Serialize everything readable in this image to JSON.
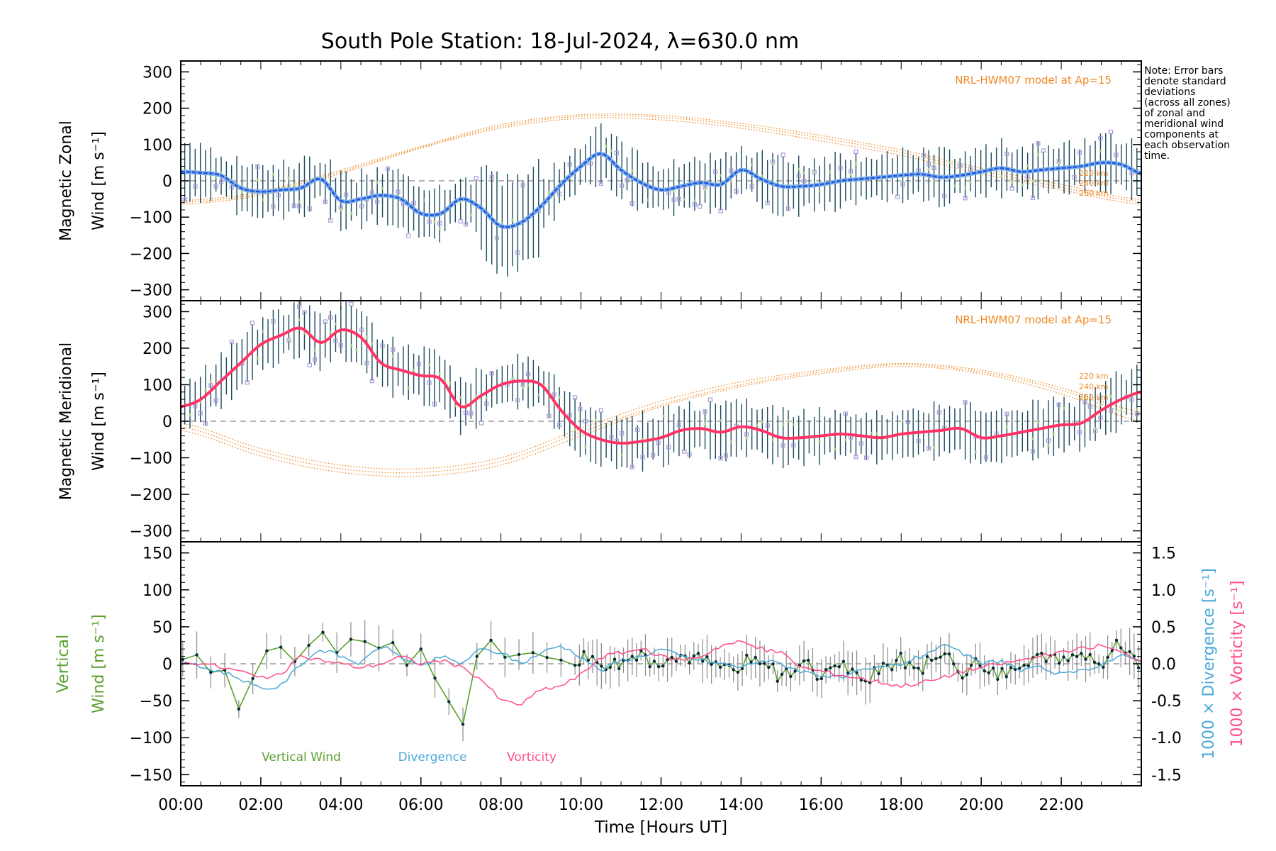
{
  "title": "South Pole Station: 18-Jul-2024, λ=630.0 nm",
  "note": [
    "Note: Error bars",
    "denote standard",
    "deviations",
    "(across all zones)",
    "of zonal and",
    "meridional wind",
    "components at",
    "each observation",
    "time."
  ],
  "colors": {
    "zonal": "#2255dd",
    "zonal_outline": "#7fb2e8",
    "meridional": "#ff3366",
    "model": "#f08a24",
    "vertical": "#5aa02c",
    "divergence": "#4aa8d8",
    "vorticity": "#ff4d88",
    "errbar": "#1a4a5a",
    "zone_marker": "#a99bdc",
    "vw_errbar": "#8a8a8a",
    "vw_point": "#0a2a3a"
  },
  "chart_data": [
    {
      "type": "line",
      "name": "magnetic-zonal-wind",
      "ylabel": [
        "Magnetic Zonal",
        "Wind [m s⁻¹]"
      ],
      "ylim": [
        -330,
        330
      ],
      "yticks": [
        300,
        200,
        100,
        0,
        -100,
        -200,
        -300
      ],
      "xlim": [
        0,
        24
      ],
      "model_label": "NRL-HWM07 model at Ap=15",
      "model_alt_labels": [
        "220 km",
        "240 km",
        "260 km"
      ],
      "series": [
        {
          "name": "Zonal Wind",
          "x": [
            0,
            0.5,
            1,
            1.5,
            2,
            2.5,
            3,
            3.5,
            4,
            4.5,
            5,
            5.5,
            6,
            6.5,
            7,
            7.5,
            8,
            8.5,
            9,
            9.5,
            10,
            10.5,
            11,
            11.5,
            12,
            12.5,
            13,
            13.5,
            14,
            14.5,
            15,
            15.5,
            16,
            16.5,
            17,
            17.5,
            18,
            18.5,
            19,
            19.5,
            20,
            20.5,
            21,
            21.5,
            22,
            22.5,
            23,
            23.5,
            24
          ],
          "y": [
            25,
            22,
            15,
            -20,
            -30,
            -25,
            -20,
            5,
            -55,
            -50,
            -40,
            -50,
            -90,
            -90,
            -50,
            -75,
            -125,
            -115,
            -70,
            -10,
            40,
            75,
            30,
            -5,
            -25,
            -15,
            -5,
            -10,
            30,
            5,
            -15,
            -15,
            -10,
            0,
            5,
            10,
            15,
            18,
            10,
            15,
            25,
            35,
            25,
            30,
            35,
            40,
            50,
            45,
            20
          ]
        }
      ],
      "model": [
        {
          "altitude": "220 km",
          "x": [
            0,
            2,
            4,
            6,
            8,
            10,
            12,
            14,
            16,
            18,
            20,
            22,
            24
          ],
          "y": [
            -65,
            -40,
            20,
            90,
            145,
            172,
            168,
            145,
            110,
            70,
            20,
            -25,
            -65
          ]
        },
        {
          "altitude": "240 km",
          "x": [
            0,
            2,
            4,
            6,
            8,
            10,
            12,
            14,
            16,
            18,
            20,
            22,
            24
          ],
          "y": [
            -60,
            -35,
            25,
            92,
            150,
            178,
            175,
            152,
            118,
            78,
            28,
            -18,
            -58
          ]
        },
        {
          "altitude": "260 km",
          "x": [
            0,
            2,
            4,
            6,
            8,
            10,
            12,
            14,
            16,
            18,
            20,
            22,
            24
          ],
          "y": [
            -55,
            -30,
            30,
            95,
            155,
            182,
            180,
            158,
            125,
            85,
            35,
            -10,
            -52
          ]
        }
      ]
    },
    {
      "type": "line",
      "name": "magnetic-meridional-wind",
      "ylabel": [
        "Magnetic Meridional",
        "Wind [m s⁻¹]"
      ],
      "ylim": [
        -330,
        330
      ],
      "yticks": [
        300,
        200,
        100,
        0,
        -100,
        -200,
        -300
      ],
      "xlim": [
        0,
        24
      ],
      "model_label": "NRL-HWM07 model at Ap=15",
      "model_alt_labels": [
        "220 km",
        "240 km",
        "260 km"
      ],
      "series": [
        {
          "name": "Meridional Wind",
          "x": [
            0,
            0.5,
            1,
            1.5,
            2,
            2.5,
            3,
            3.5,
            4,
            4.5,
            5,
            5.5,
            6,
            6.5,
            7,
            7.5,
            8,
            8.5,
            9,
            9.5,
            10,
            10.5,
            11,
            11.5,
            12,
            12.5,
            13,
            13.5,
            14,
            14.5,
            15,
            15.5,
            16,
            16.5,
            17,
            17.5,
            18,
            18.5,
            19,
            19.5,
            20,
            20.5,
            21,
            21.5,
            22,
            22.5,
            23,
            23.5,
            24
          ],
          "y": [
            40,
            60,
            110,
            160,
            210,
            235,
            255,
            215,
            250,
            230,
            160,
            140,
            125,
            115,
            40,
            70,
            100,
            110,
            100,
            30,
            -25,
            -50,
            -60,
            -55,
            -45,
            -25,
            -20,
            -30,
            -15,
            -25,
            -45,
            -45,
            -40,
            -35,
            -40,
            -45,
            -35,
            -30,
            -25,
            -20,
            -45,
            -40,
            -30,
            -20,
            -10,
            -5,
            30,
            60,
            80
          ]
        }
      ],
      "model": [
        {
          "altitude": "220 km",
          "x": [
            0,
            2,
            4,
            6,
            8,
            10,
            12,
            14,
            16,
            18,
            20,
            22,
            24
          ],
          "y": [
            -25,
            -95,
            -140,
            -150,
            -120,
            -40,
            40,
            95,
            130,
            150,
            130,
            75,
            0
          ]
        },
        {
          "altitude": "240 km",
          "x": [
            0,
            2,
            4,
            6,
            8,
            10,
            12,
            14,
            16,
            18,
            20,
            22,
            24
          ],
          "y": [
            -15,
            -85,
            -130,
            -140,
            -110,
            -30,
            45,
            100,
            135,
            155,
            135,
            85,
            15
          ]
        },
        {
          "altitude": "260 km",
          "x": [
            0,
            2,
            4,
            6,
            8,
            10,
            12,
            14,
            16,
            18,
            20,
            22,
            24
          ],
          "y": [
            -5,
            -75,
            -120,
            -130,
            -100,
            -20,
            55,
            108,
            140,
            158,
            140,
            92,
            25
          ]
        }
      ]
    },
    {
      "type": "line",
      "name": "vertical-divergence-vorticity",
      "ylabel": [
        "Vertical",
        "Wind [m s⁻¹]"
      ],
      "ylim": [
        -165,
        165
      ],
      "yticks": [
        150,
        100,
        50,
        0,
        -50,
        -100,
        -150
      ],
      "right_ylim": [
        -1.65,
        1.65
      ],
      "right_yticks": [
        1.5,
        1.0,
        0.5,
        0.0,
        -0.5,
        -1.0,
        -1.5
      ],
      "right_ylabels": [
        "1000 × Divergence [s⁻¹]",
        "1000 × Vorticity [s⁻¹]"
      ],
      "xlim": [
        0,
        24
      ],
      "xticks": [
        "00:00",
        "02:00",
        "04:00",
        "06:00",
        "08:00",
        "10:00",
        "12:00",
        "14:00",
        "16:00",
        "18:00",
        "20:00",
        "22:00"
      ],
      "xlabel": "Time [Hours UT]",
      "legend": [
        "Vertical Wind",
        "Divergence",
        "Vorticity"
      ],
      "series": [
        {
          "name": "Vertical Wind",
          "axis": "left",
          "x": [
            0,
            0.4,
            0.8,
            1.0,
            1.4,
            1.6,
            2.0,
            2.4,
            2.8,
            3.2,
            3.6,
            4.0,
            4.4,
            4.8,
            5.2,
            5.6,
            6.0,
            6.4,
            6.8,
            7.0,
            7.4,
            7.8,
            8.2,
            8.6,
            9.0,
            9.5,
            10.0,
            10.5,
            11.0,
            11.5,
            12.0,
            12.5,
            13.0,
            13.5,
            14.0,
            14.5,
            15.0,
            15.5,
            16.0,
            16.5,
            17.0,
            17.5,
            18.0,
            18.5,
            19.0,
            19.5,
            20.0,
            20.5,
            21.0,
            21.5,
            22.0,
            22.5,
            23.0,
            23.5,
            24.0
          ],
          "y": [
            5,
            12,
            -15,
            10,
            -65,
            -50,
            10,
            30,
            0,
            25,
            45,
            5,
            50,
            10,
            40,
            -5,
            20,
            -25,
            -60,
            -95,
            10,
            35,
            0,
            20,
            10,
            5,
            8,
            0,
            -5,
            10,
            -10,
            15,
            5,
            -10,
            0,
            10,
            -20,
            5,
            -15,
            0,
            -25,
            -10,
            5,
            -5,
            15,
            -10,
            0,
            -15,
            -5,
            10,
            0,
            15,
            0,
            30,
            -5
          ]
        },
        {
          "name": "Divergence",
          "axis": "right",
          "x": [
            0,
            0.5,
            1.0,
            1.5,
            2.0,
            2.5,
            3.0,
            3.5,
            4.0,
            4.5,
            5.0,
            5.5,
            6.0,
            6.5,
            7.0,
            7.5,
            8.0,
            8.5,
            9.0,
            9.5,
            10.0,
            10.5,
            11.0,
            11.5,
            12.0,
            12.5,
            13.0,
            13.5,
            14.0,
            14.5,
            15.0,
            15.5,
            16.0,
            16.5,
            17.0,
            17.5,
            18.0,
            18.5,
            19.0,
            19.5,
            20.0,
            20.5,
            21.0,
            21.5,
            22.0,
            22.5,
            23.0,
            23.5,
            24.0
          ],
          "y": [
            0.05,
            -0.05,
            -0.1,
            -0.2,
            -0.35,
            -0.3,
            0.0,
            0.2,
            0.1,
            0.0,
            0.25,
            0.1,
            -0.05,
            0.1,
            0.0,
            0.2,
            0.15,
            0.0,
            0.15,
            0.25,
            0.1,
            -0.1,
            0.05,
            0.1,
            0.2,
            0.1,
            0.05,
            0.0,
            -0.05,
            0.05,
            0.0,
            -0.1,
            -0.15,
            -0.2,
            -0.1,
            -0.05,
            0.0,
            0.1,
            0.25,
            0.15,
            0.0,
            0.05,
            -0.1,
            -0.05,
            -0.15,
            -0.1,
            0.0,
            0.1,
            0.05
          ]
        },
        {
          "name": "Vorticity",
          "axis": "right",
          "x": [
            0,
            0.5,
            1.0,
            1.5,
            2.0,
            2.5,
            3.0,
            3.5,
            4.0,
            4.5,
            5.0,
            5.5,
            6.0,
            6.5,
            7.0,
            7.5,
            8.0,
            8.5,
            9.0,
            9.5,
            10.0,
            10.5,
            11.0,
            11.5,
            12.0,
            12.5,
            13.0,
            13.5,
            14.0,
            14.5,
            15.0,
            15.5,
            16.0,
            16.5,
            17.0,
            17.5,
            18.0,
            18.5,
            19.0,
            19.5,
            20.0,
            20.5,
            21.0,
            21.5,
            22.0,
            22.5,
            23.0,
            23.5,
            24.0
          ],
          "y": [
            0.0,
            0.02,
            -0.05,
            -0.1,
            -0.2,
            -0.15,
            0.1,
            0.05,
            0.0,
            -0.05,
            0.0,
            0.1,
            0.0,
            0.05,
            -0.05,
            -0.2,
            -0.5,
            -0.55,
            -0.35,
            -0.3,
            -0.15,
            0.1,
            0.15,
            0.2,
            0.1,
            0.05,
            0.1,
            0.25,
            0.3,
            0.2,
            0.15,
            -0.05,
            -0.1,
            -0.15,
            -0.2,
            -0.25,
            -0.3,
            -0.25,
            -0.2,
            -0.1,
            -0.05,
            0.0,
            0.05,
            0.1,
            0.15,
            0.2,
            0.25,
            0.15,
            0.05
          ]
        }
      ]
    }
  ]
}
